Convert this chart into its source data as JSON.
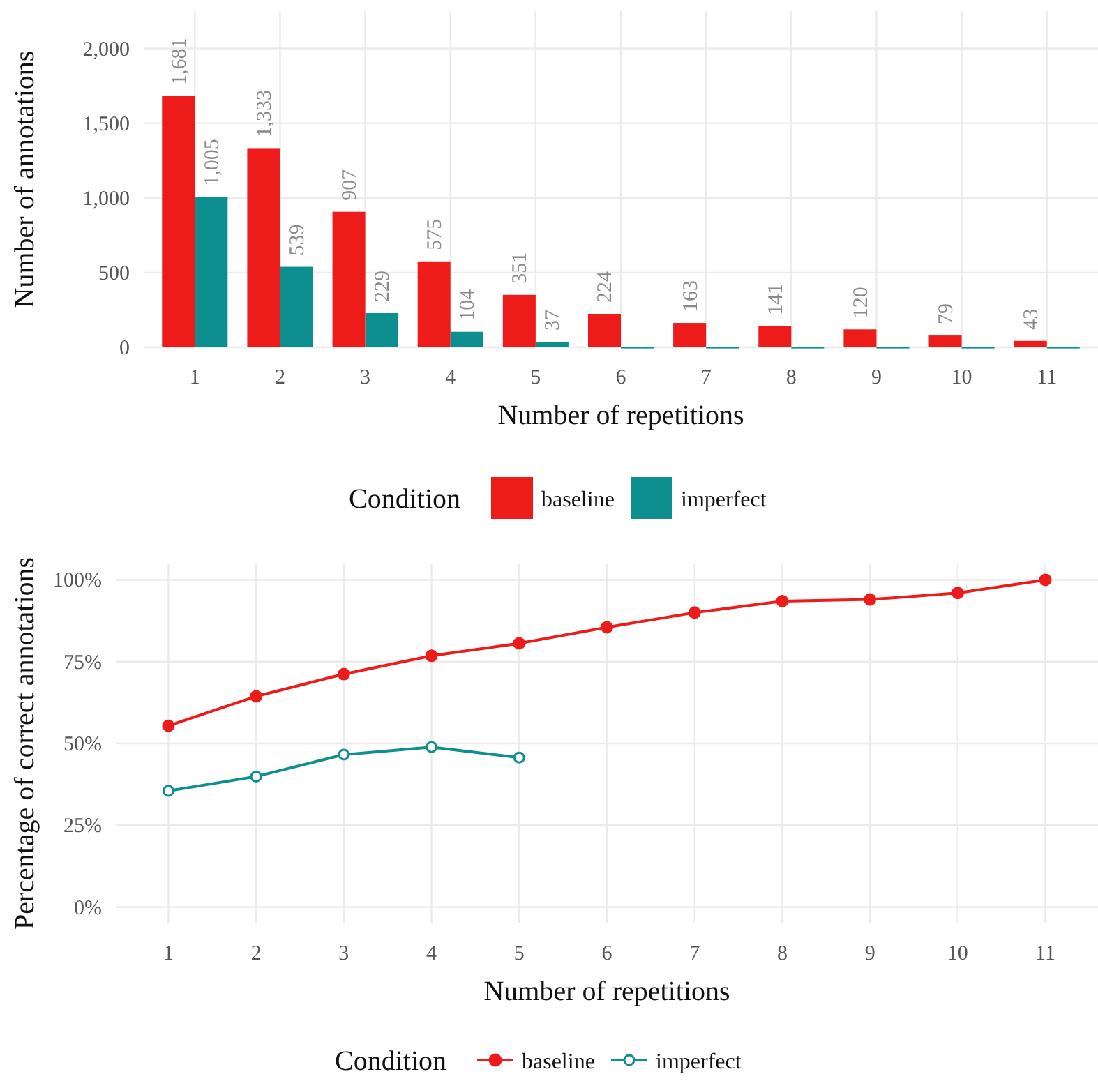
{
  "chart_data": [
    {
      "type": "bar",
      "xlabel": "Number of repetitions",
      "ylabel": "Number of annotations",
      "legend_title": "Condition",
      "categories": [
        "1",
        "2",
        "3",
        "4",
        "5",
        "6",
        "7",
        "8",
        "9",
        "10",
        "11"
      ],
      "series": [
        {
          "name": "baseline",
          "color": "#ee1b1b",
          "values": [
            1681,
            1333,
            907,
            575,
            351,
            224,
            163,
            141,
            120,
            79,
            43
          ],
          "value_labels": [
            "1,681",
            "1,333",
            "907",
            "575",
            "351",
            "224",
            "163",
            "141",
            "120",
            "79",
            "43"
          ]
        },
        {
          "name": "imperfect",
          "color": "#0e8f8f",
          "values": [
            1005,
            539,
            229,
            104,
            37,
            0,
            0,
            0,
            0,
            0,
            0
          ],
          "value_labels": [
            "1,005",
            "539",
            "229",
            "104",
            "37",
            null,
            null,
            null,
            null,
            null,
            null
          ]
        }
      ],
      "ylim": [
        0,
        2250
      ],
      "yticks": [
        0,
        500,
        {
          "value": 1000,
          "label": "1,000"
        },
        {
          "value": 1500,
          "label": "1,500"
        },
        {
          "value": 2000,
          "label": "2,000"
        }
      ],
      "grid": true,
      "legend": "bottom"
    },
    {
      "type": "line",
      "xlabel": "Number of repetitions",
      "ylabel": "Percentage of correct annotations",
      "legend_title": "Condition",
      "categories": [
        "1",
        "2",
        "3",
        "4",
        "5",
        "6",
        "7",
        "8",
        "9",
        "10",
        "11"
      ],
      "series": [
        {
          "name": "baseline",
          "color": "#ee1b1b",
          "values": [
            55.4,
            64.4,
            71.2,
            76.8,
            80.6,
            85.5,
            90.0,
            93.5,
            94.0,
            96.0,
            100
          ]
        },
        {
          "name": "imperfect",
          "color": "#0e8f8f",
          "values": [
            35.5,
            39.9,
            46.6,
            48.9,
            45.7,
            null,
            null,
            null,
            null,
            null,
            null
          ]
        }
      ],
      "ylim": [
        -5,
        105
      ],
      "yticks": [
        {
          "value": 0,
          "label": "0%"
        },
        {
          "value": 25,
          "label": "25%"
        },
        {
          "value": 50,
          "label": "50%"
        },
        {
          "value": 75,
          "label": "75%"
        },
        {
          "value": 100,
          "label": "100%"
        }
      ],
      "grid": true,
      "legend": "bottom",
      "marker": "circle",
      "line_style": "solid"
    }
  ]
}
